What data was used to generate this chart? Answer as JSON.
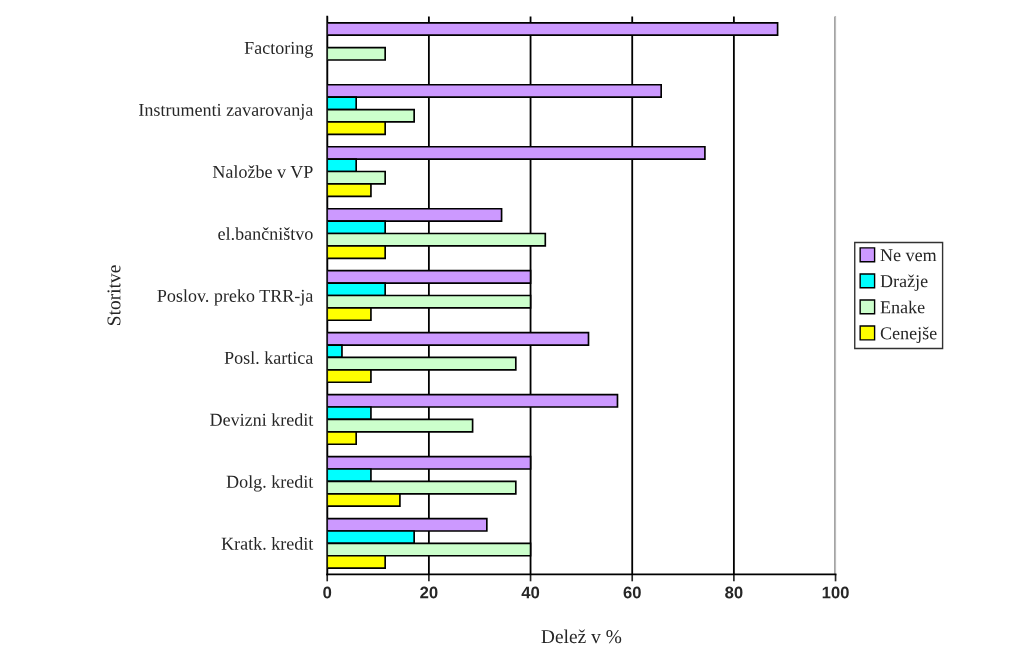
{
  "chart_data": {
    "type": "bar",
    "orientation": "horizontal",
    "xlabel": "Delež v %",
    "ylabel": "Storitve",
    "categories": [
      "Factoring",
      "Instrumenti zavarovanja",
      "Naložbe v VP",
      "el.bančništvo",
      "Poslov. preko TRR-ja",
      "Posl. kartica",
      "Devizni kredit",
      "Dolg. kredit",
      "Kratk. kredit"
    ],
    "series": [
      {
        "name": "Ne vem",
        "color": "#cc99ff",
        "values": [
          88.6,
          65.7,
          74.3,
          34.3,
          40,
          51.4,
          57.1,
          40,
          31.4
        ]
      },
      {
        "name": "Dražje",
        "color": "#00ffff",
        "values": [
          null,
          5.7,
          5.7,
          11.4,
          11.4,
          2.9,
          8.6,
          8.6,
          17.1
        ]
      },
      {
        "name": "Enake",
        "color": "#ccffcc",
        "values": [
          11.4,
          17.1,
          11.4,
          42.9,
          40,
          37.1,
          28.6,
          37.1,
          40
        ]
      },
      {
        "name": "Cenejše",
        "color": "#ffff00",
        "values": [
          null,
          11.4,
          8.6,
          11.4,
          8.6,
          8.6,
          5.7,
          14.3,
          11.4
        ]
      }
    ],
    "xlim": [
      0,
      100
    ],
    "xticks": [
      0,
      20,
      40,
      60,
      80,
      100
    ],
    "grid": "x",
    "legend": "right"
  }
}
